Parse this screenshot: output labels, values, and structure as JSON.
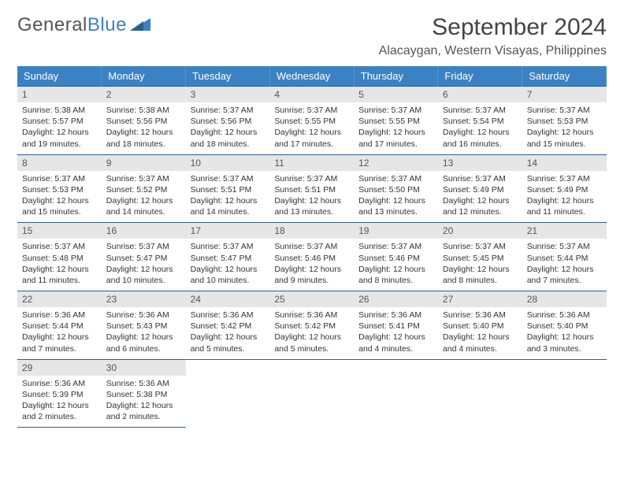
{
  "logo": {
    "text1": "General",
    "text2": "Blue"
  },
  "title": "September 2024",
  "location": "Alacaygan, Western Visayas, Philippines",
  "colors": {
    "header_bg": "#3b82c4",
    "header_text": "#ffffff",
    "daynum_bg": "#e6e6e6",
    "border": "#2f5f8a",
    "body_text": "#333333",
    "logo_gray": "#555555",
    "logo_blue": "#3b82c4"
  },
  "dow": [
    "Sunday",
    "Monday",
    "Tuesday",
    "Wednesday",
    "Thursday",
    "Friday",
    "Saturday"
  ],
  "days": [
    {
      "n": "1",
      "sr": "5:38 AM",
      "ss": "5:57 PM",
      "dl": "12 hours and 19 minutes."
    },
    {
      "n": "2",
      "sr": "5:38 AM",
      "ss": "5:56 PM",
      "dl": "12 hours and 18 minutes."
    },
    {
      "n": "3",
      "sr": "5:37 AM",
      "ss": "5:56 PM",
      "dl": "12 hours and 18 minutes."
    },
    {
      "n": "4",
      "sr": "5:37 AM",
      "ss": "5:55 PM",
      "dl": "12 hours and 17 minutes."
    },
    {
      "n": "5",
      "sr": "5:37 AM",
      "ss": "5:55 PM",
      "dl": "12 hours and 17 minutes."
    },
    {
      "n": "6",
      "sr": "5:37 AM",
      "ss": "5:54 PM",
      "dl": "12 hours and 16 minutes."
    },
    {
      "n": "7",
      "sr": "5:37 AM",
      "ss": "5:53 PM",
      "dl": "12 hours and 15 minutes."
    },
    {
      "n": "8",
      "sr": "5:37 AM",
      "ss": "5:53 PM",
      "dl": "12 hours and 15 minutes."
    },
    {
      "n": "9",
      "sr": "5:37 AM",
      "ss": "5:52 PM",
      "dl": "12 hours and 14 minutes."
    },
    {
      "n": "10",
      "sr": "5:37 AM",
      "ss": "5:51 PM",
      "dl": "12 hours and 14 minutes."
    },
    {
      "n": "11",
      "sr": "5:37 AM",
      "ss": "5:51 PM",
      "dl": "12 hours and 13 minutes."
    },
    {
      "n": "12",
      "sr": "5:37 AM",
      "ss": "5:50 PM",
      "dl": "12 hours and 13 minutes."
    },
    {
      "n": "13",
      "sr": "5:37 AM",
      "ss": "5:49 PM",
      "dl": "12 hours and 12 minutes."
    },
    {
      "n": "14",
      "sr": "5:37 AM",
      "ss": "5:49 PM",
      "dl": "12 hours and 11 minutes."
    },
    {
      "n": "15",
      "sr": "5:37 AM",
      "ss": "5:48 PM",
      "dl": "12 hours and 11 minutes."
    },
    {
      "n": "16",
      "sr": "5:37 AM",
      "ss": "5:47 PM",
      "dl": "12 hours and 10 minutes."
    },
    {
      "n": "17",
      "sr": "5:37 AM",
      "ss": "5:47 PM",
      "dl": "12 hours and 10 minutes."
    },
    {
      "n": "18",
      "sr": "5:37 AM",
      "ss": "5:46 PM",
      "dl": "12 hours and 9 minutes."
    },
    {
      "n": "19",
      "sr": "5:37 AM",
      "ss": "5:46 PM",
      "dl": "12 hours and 8 minutes."
    },
    {
      "n": "20",
      "sr": "5:37 AM",
      "ss": "5:45 PM",
      "dl": "12 hours and 8 minutes."
    },
    {
      "n": "21",
      "sr": "5:37 AM",
      "ss": "5:44 PM",
      "dl": "12 hours and 7 minutes."
    },
    {
      "n": "22",
      "sr": "5:36 AM",
      "ss": "5:44 PM",
      "dl": "12 hours and 7 minutes."
    },
    {
      "n": "23",
      "sr": "5:36 AM",
      "ss": "5:43 PM",
      "dl": "12 hours and 6 minutes."
    },
    {
      "n": "24",
      "sr": "5:36 AM",
      "ss": "5:42 PM",
      "dl": "12 hours and 5 minutes."
    },
    {
      "n": "25",
      "sr": "5:36 AM",
      "ss": "5:42 PM",
      "dl": "12 hours and 5 minutes."
    },
    {
      "n": "26",
      "sr": "5:36 AM",
      "ss": "5:41 PM",
      "dl": "12 hours and 4 minutes."
    },
    {
      "n": "27",
      "sr": "5:36 AM",
      "ss": "5:40 PM",
      "dl": "12 hours and 4 minutes."
    },
    {
      "n": "28",
      "sr": "5:36 AM",
      "ss": "5:40 PM",
      "dl": "12 hours and 3 minutes."
    },
    {
      "n": "29",
      "sr": "5:36 AM",
      "ss": "5:39 PM",
      "dl": "12 hours and 2 minutes."
    },
    {
      "n": "30",
      "sr": "5:36 AM",
      "ss": "5:38 PM",
      "dl": "12 hours and 2 minutes."
    }
  ],
  "labels": {
    "sunrise": "Sunrise:",
    "sunset": "Sunset:",
    "daylight": "Daylight:"
  }
}
